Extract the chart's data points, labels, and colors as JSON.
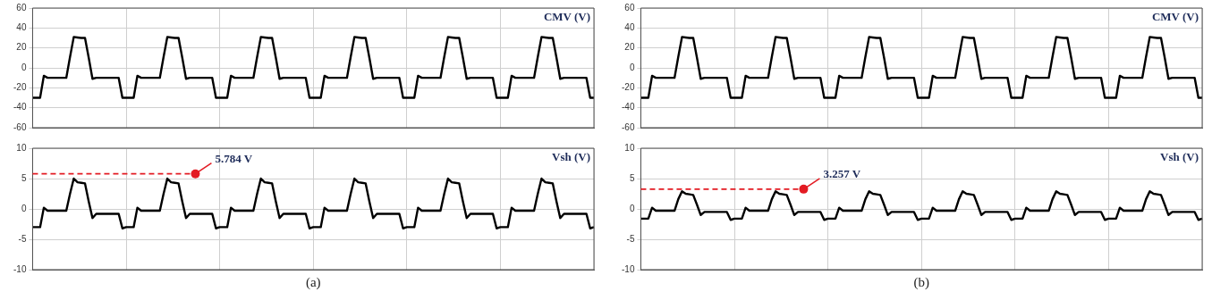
{
  "chart_data": [
    {
      "type": "line",
      "title": "CMV (V)",
      "categories": [
        null,
        null,
        null,
        null,
        null,
        null,
        null,
        null,
        null,
        null,
        null,
        null,
        null,
        null,
        null,
        null,
        null,
        null,
        null,
        null,
        null,
        null,
        null,
        null,
        null,
        null,
        null,
        null,
        null,
        null,
        null,
        null,
        null,
        null,
        null,
        null,
        null,
        null,
        null,
        null,
        null,
        null,
        null,
        null,
        null,
        null,
        null,
        null,
        null,
        null,
        null,
        null,
        null,
        null,
        null,
        null,
        null,
        null,
        null,
        null,
        null,
        null,
        null,
        null,
        null,
        null,
        null,
        null,
        null,
        null,
        null,
        null,
        null,
        null,
        null,
        null,
        null,
        null,
        null,
        null,
        null,
        null,
        null,
        null,
        null,
        null,
        null,
        null,
        null,
        null,
        null,
        null,
        null,
        null,
        null,
        null,
        null,
        null,
        null,
        null,
        null,
        null,
        null,
        null,
        null,
        null,
        null,
        null,
        null,
        null,
        null,
        null,
        null,
        null,
        null,
        null,
        null,
        null,
        null,
        null,
        null,
        null,
        null,
        null,
        null,
        null,
        null,
        null,
        null,
        null,
        null,
        null,
        null,
        null,
        null,
        null,
        null,
        null,
        null,
        null,
        null,
        null,
        null,
        null,
        null,
        null,
        null,
        null,
        null,
        null,
        null
      ],
      "series": [
        {
          "color": "#000000",
          "values": [
            -30,
            -30,
            -30,
            -8,
            -10,
            -10,
            -10,
            -10,
            -10,
            -10,
            11,
            31,
            30.5,
            30,
            30,
            10,
            -11,
            -10,
            -10,
            -10,
            -10,
            -10,
            -10,
            -10,
            -30,
            -30,
            -30,
            -30,
            -8,
            -10,
            -10,
            -10,
            -10,
            -10,
            -10,
            11,
            31,
            30.5,
            30,
            30,
            10,
            -11,
            -10,
            -10,
            -10,
            -10,
            -10,
            -10,
            -10,
            -30,
            -30,
            -30,
            -30,
            -8,
            -10,
            -10,
            -10,
            -10,
            -10,
            -10,
            11,
            31,
            30.5,
            30,
            30,
            10,
            -11,
            -10,
            -10,
            -10,
            -10,
            -10,
            -10,
            -10,
            -30,
            -30,
            -30,
            -30,
            -8,
            -10,
            -10,
            -10,
            -10,
            -10,
            -10,
            11,
            31,
            30.5,
            30,
            30,
            10,
            -11,
            -10,
            -10,
            -10,
            -10,
            -10,
            -10,
            -10,
            -30,
            -30,
            -30,
            -30,
            -8,
            -10,
            -10,
            -10,
            -10,
            -10,
            -10,
            11,
            31,
            30.5,
            30,
            30,
            10,
            -11,
            -10,
            -10,
            -10,
            -10,
            -10,
            -10,
            -10,
            -30,
            -30,
            -30,
            -30,
            -8,
            -10,
            -10,
            -10,
            -10,
            -10,
            -10,
            11,
            31,
            30.5,
            30,
            30,
            10,
            -11,
            -10,
            -10,
            -10,
            -10,
            -10,
            -10,
            -10,
            -30,
            -30
          ]
        }
      ],
      "ylim": [
        -60,
        60
      ],
      "yticks": [
        -60,
        -40,
        -20,
        0,
        20,
        40,
        60
      ],
      "grid": true,
      "legend": false,
      "tick_labels": "y",
      "marker": "none",
      "line_style": "solid"
    },
    {
      "type": "line",
      "title": "Vsh (V)",
      "xlabel": "(a)",
      "ref_lines": [
        {
          "axis": "y",
          "value": 5.784,
          "label": "5.784 V",
          "color": "#e31b23",
          "line_style": "dashed"
        }
      ],
      "categories": [
        null,
        null,
        null,
        null,
        null,
        null,
        null,
        null,
        null,
        null,
        null,
        null,
        null,
        null,
        null,
        null,
        null,
        null,
        null,
        null,
        null,
        null,
        null,
        null,
        null,
        null,
        null,
        null,
        null,
        null,
        null,
        null,
        null,
        null,
        null,
        null,
        null,
        null,
        null,
        null,
        null,
        null,
        null,
        null,
        null,
        null,
        null,
        null,
        null,
        null,
        null,
        null,
        null,
        null,
        null,
        null,
        null,
        null,
        null,
        null,
        null,
        null,
        null,
        null,
        null,
        null,
        null,
        null,
        null,
        null,
        null,
        null,
        null,
        null,
        null,
        null,
        null,
        null,
        null,
        null,
        null,
        null,
        null,
        null,
        null,
        null,
        null,
        null,
        null,
        null,
        null,
        null,
        null,
        null,
        null,
        null,
        null,
        null,
        null,
        null,
        null,
        null,
        null,
        null,
        null,
        null,
        null,
        null,
        null,
        null,
        null,
        null,
        null,
        null,
        null,
        null,
        null,
        null,
        null,
        null,
        null,
        null,
        null,
        null,
        null,
        null,
        null,
        null,
        null,
        null,
        null,
        null,
        null,
        null,
        null,
        null,
        null,
        null,
        null,
        null,
        null,
        null,
        null,
        null,
        null,
        null,
        null,
        null,
        null,
        null,
        null
      ],
      "series": [
        {
          "color": "#000000",
          "values": [
            -3,
            -3,
            -3,
            0.2,
            -0.3,
            -0.3,
            -0.3,
            -0.3,
            -0.3,
            -0.3,
            2.5,
            5,
            4.4,
            4.3,
            4.2,
            1.2,
            -1.5,
            -0.8,
            -0.8,
            -0.8,
            -0.8,
            -0.8,
            -0.8,
            -0.8,
            -3.2,
            -3,
            -3,
            -3,
            0.2,
            -0.3,
            -0.3,
            -0.3,
            -0.3,
            -0.3,
            -0.3,
            2.5,
            5,
            4.4,
            4.3,
            4.2,
            1.2,
            -1.5,
            -0.8,
            -0.8,
            -0.8,
            -0.8,
            -0.8,
            -0.8,
            -0.8,
            -3.2,
            -3,
            -3,
            -3,
            0.2,
            -0.3,
            -0.3,
            -0.3,
            -0.3,
            -0.3,
            -0.3,
            2.5,
            5,
            4.4,
            4.3,
            4.2,
            1.2,
            -1.5,
            -0.8,
            -0.8,
            -0.8,
            -0.8,
            -0.8,
            -0.8,
            -0.8,
            -3.2,
            -3,
            -3,
            -3,
            0.2,
            -0.3,
            -0.3,
            -0.3,
            -0.3,
            -0.3,
            -0.3,
            2.5,
            5,
            4.4,
            4.3,
            4.2,
            1.2,
            -1.5,
            -0.8,
            -0.8,
            -0.8,
            -0.8,
            -0.8,
            -0.8,
            -0.8,
            -3.2,
            -3,
            -3,
            -3,
            0.2,
            -0.3,
            -0.3,
            -0.3,
            -0.3,
            -0.3,
            -0.3,
            2.5,
            5,
            4.4,
            4.3,
            4.2,
            1.2,
            -1.5,
            -0.8,
            -0.8,
            -0.8,
            -0.8,
            -0.8,
            -0.8,
            -0.8,
            -3.2,
            -3,
            -3,
            -3,
            0.2,
            -0.3,
            -0.3,
            -0.3,
            -0.3,
            -0.3,
            -0.3,
            2.5,
            5,
            4.4,
            4.3,
            4.2,
            1.2,
            -1.5,
            -0.8,
            -0.8,
            -0.8,
            -0.8,
            -0.8,
            -0.8,
            -0.8,
            -3.2,
            -3
          ]
        }
      ],
      "ylim": [
        -10,
        10
      ],
      "yticks": [
        -10,
        -5,
        0,
        5,
        10
      ],
      "grid": true,
      "legend": false,
      "tick_labels": "y",
      "marker": "none",
      "line_style": "solid"
    },
    {
      "type": "line",
      "title": "CMV (V)",
      "categories": [
        null,
        null,
        null,
        null,
        null,
        null,
        null,
        null,
        null,
        null,
        null,
        null,
        null,
        null,
        null,
        null,
        null,
        null,
        null,
        null,
        null,
        null,
        null,
        null,
        null,
        null,
        null,
        null,
        null,
        null,
        null,
        null,
        null,
        null,
        null,
        null,
        null,
        null,
        null,
        null,
        null,
        null,
        null,
        null,
        null,
        null,
        null,
        null,
        null,
        null,
        null,
        null,
        null,
        null,
        null,
        null,
        null,
        null,
        null,
        null,
        null,
        null,
        null,
        null,
        null,
        null,
        null,
        null,
        null,
        null,
        null,
        null,
        null,
        null,
        null,
        null,
        null,
        null,
        null,
        null,
        null,
        null,
        null,
        null,
        null,
        null,
        null,
        null,
        null,
        null,
        null,
        null,
        null,
        null,
        null,
        null,
        null,
        null,
        null,
        null,
        null,
        null,
        null,
        null,
        null,
        null,
        null,
        null,
        null,
        null,
        null,
        null,
        null,
        null,
        null,
        null,
        null,
        null,
        null,
        null,
        null,
        null,
        null,
        null,
        null,
        null,
        null,
        null,
        null,
        null,
        null,
        null,
        null,
        null,
        null,
        null,
        null,
        null,
        null,
        null,
        null,
        null,
        null,
        null,
        null,
        null,
        null,
        null,
        null,
        null,
        null
      ],
      "series": [
        {
          "color": "#000000",
          "values": [
            -30,
            -30,
            -30,
            -8,
            -10,
            -10,
            -10,
            -10,
            -10,
            -10,
            11,
            31,
            30.5,
            30,
            30,
            10,
            -11,
            -10,
            -10,
            -10,
            -10,
            -10,
            -10,
            -10,
            -30,
            -30,
            -30,
            -30,
            -8,
            -10,
            -10,
            -10,
            -10,
            -10,
            -10,
            11,
            31,
            30.5,
            30,
            30,
            10,
            -11,
            -10,
            -10,
            -10,
            -10,
            -10,
            -10,
            -10,
            -30,
            -30,
            -30,
            -30,
            -8,
            -10,
            -10,
            -10,
            -10,
            -10,
            -10,
            11,
            31,
            30.5,
            30,
            30,
            10,
            -11,
            -10,
            -10,
            -10,
            -10,
            -10,
            -10,
            -10,
            -30,
            -30,
            -30,
            -30,
            -8,
            -10,
            -10,
            -10,
            -10,
            -10,
            -10,
            11,
            31,
            30.5,
            30,
            30,
            10,
            -11,
            -10,
            -10,
            -10,
            -10,
            -10,
            -10,
            -10,
            -30,
            -30,
            -30,
            -30,
            -8,
            -10,
            -10,
            -10,
            -10,
            -10,
            -10,
            11,
            31,
            30.5,
            30,
            30,
            10,
            -11,
            -10,
            -10,
            -10,
            -10,
            -10,
            -10,
            -10,
            -30,
            -30,
            -30,
            -30,
            -8,
            -10,
            -10,
            -10,
            -10,
            -10,
            -10,
            11,
            31,
            30.5,
            30,
            30,
            10,
            -11,
            -10,
            -10,
            -10,
            -10,
            -10,
            -10,
            -10,
            -30,
            -30
          ]
        }
      ],
      "ylim": [
        -60,
        60
      ],
      "yticks": [
        -60,
        -40,
        -20,
        0,
        20,
        40,
        60
      ],
      "grid": true,
      "legend": false,
      "tick_labels": "y",
      "marker": "none",
      "line_style": "solid"
    },
    {
      "type": "line",
      "title": "Vsh (V)",
      "xlabel": "(b)",
      "ref_lines": [
        {
          "axis": "y",
          "value": 3.257,
          "label": "3.257 V",
          "color": "#e31b23",
          "line_style": "dashed"
        }
      ],
      "categories": [
        null,
        null,
        null,
        null,
        null,
        null,
        null,
        null,
        null,
        null,
        null,
        null,
        null,
        null,
        null,
        null,
        null,
        null,
        null,
        null,
        null,
        null,
        null,
        null,
        null,
        null,
        null,
        null,
        null,
        null,
        null,
        null,
        null,
        null,
        null,
        null,
        null,
        null,
        null,
        null,
        null,
        null,
        null,
        null,
        null,
        null,
        null,
        null,
        null,
        null,
        null,
        null,
        null,
        null,
        null,
        null,
        null,
        null,
        null,
        null,
        null,
        null,
        null,
        null,
        null,
        null,
        null,
        null,
        null,
        null,
        null,
        null,
        null,
        null,
        null,
        null,
        null,
        null,
        null,
        null,
        null,
        null,
        null,
        null,
        null,
        null,
        null,
        null,
        null,
        null,
        null,
        null,
        null,
        null,
        null,
        null,
        null,
        null,
        null,
        null,
        null,
        null,
        null,
        null,
        null,
        null,
        null,
        null,
        null,
        null,
        null,
        null,
        null,
        null,
        null,
        null,
        null,
        null,
        null,
        null,
        null,
        null,
        null,
        null,
        null,
        null,
        null,
        null,
        null,
        null,
        null,
        null,
        null,
        null,
        null,
        null,
        null,
        null,
        null,
        null,
        null,
        null,
        null,
        null,
        null,
        null,
        null,
        null,
        null,
        null,
        null
      ],
      "series": [
        {
          "color": "#000000",
          "values": [
            -1.6,
            -1.6,
            -1.6,
            0.2,
            -0.3,
            -0.3,
            -0.3,
            -0.3,
            -0.3,
            -0.3,
            1.6,
            2.9,
            2.5,
            2.4,
            2.3,
            0.7,
            -1,
            -0.5,
            -0.5,
            -0.5,
            -0.5,
            -0.5,
            -0.5,
            -0.5,
            -1.8,
            -1.6,
            -1.6,
            -1.6,
            0.2,
            -0.3,
            -0.3,
            -0.3,
            -0.3,
            -0.3,
            -0.3,
            1.6,
            2.9,
            2.5,
            2.4,
            2.3,
            0.7,
            -1,
            -0.5,
            -0.5,
            -0.5,
            -0.5,
            -0.5,
            -0.5,
            -0.5,
            -1.8,
            -1.6,
            -1.6,
            -1.6,
            0.2,
            -0.3,
            -0.3,
            -0.3,
            -0.3,
            -0.3,
            -0.3,
            1.6,
            2.9,
            2.5,
            2.4,
            2.3,
            0.7,
            -1,
            -0.5,
            -0.5,
            -0.5,
            -0.5,
            -0.5,
            -0.5,
            -0.5,
            -1.8,
            -1.6,
            -1.6,
            -1.6,
            0.2,
            -0.3,
            -0.3,
            -0.3,
            -0.3,
            -0.3,
            -0.3,
            1.6,
            2.9,
            2.5,
            2.4,
            2.3,
            0.7,
            -1,
            -0.5,
            -0.5,
            -0.5,
            -0.5,
            -0.5,
            -0.5,
            -0.5,
            -1.8,
            -1.6,
            -1.6,
            -1.6,
            0.2,
            -0.3,
            -0.3,
            -0.3,
            -0.3,
            -0.3,
            -0.3,
            1.6,
            2.9,
            2.5,
            2.4,
            2.3,
            0.7,
            -1,
            -0.5,
            -0.5,
            -0.5,
            -0.5,
            -0.5,
            -0.5,
            -0.5,
            -1.8,
            -1.6,
            -1.6,
            -1.6,
            0.2,
            -0.3,
            -0.3,
            -0.3,
            -0.3,
            -0.3,
            -0.3,
            1.6,
            2.9,
            2.5,
            2.4,
            2.3,
            0.7,
            -1,
            -0.5,
            -0.5,
            -0.5,
            -0.5,
            -0.5,
            -0.5,
            -0.5,
            -1.8,
            -1.6
          ]
        }
      ],
      "ylim": [
        -10,
        10
      ],
      "yticks": [
        -10,
        -5,
        0,
        5,
        10
      ],
      "grid": true,
      "legend": false,
      "tick_labels": "y",
      "marker": "none",
      "line_style": "solid"
    }
  ]
}
